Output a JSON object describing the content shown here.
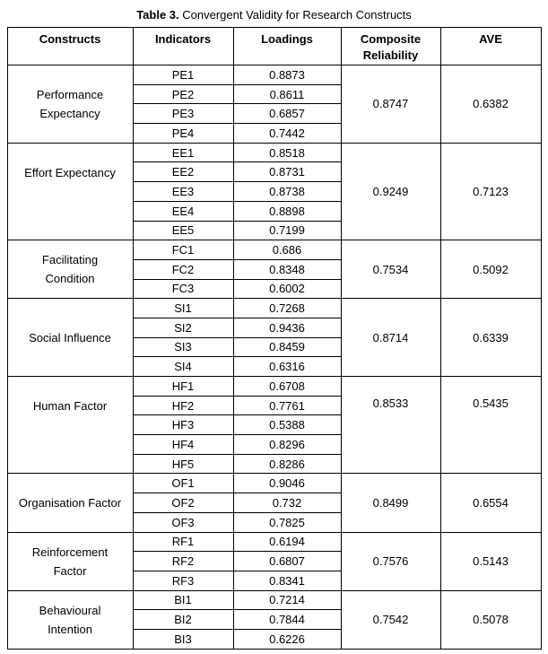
{
  "title": {
    "prefix": "Table 3.",
    "text": " Convergent Validity for Research Constructs"
  },
  "table": {
    "headers": [
      "Constructs",
      "Indicators",
      "Loadings",
      "Composite Reliability",
      "AVE"
    ],
    "groups": [
      {
        "construct": "Performance Expectancy",
        "construct_lines": [
          "Performance",
          "Expectancy"
        ],
        "composite_reliability": "0.8747",
        "ave": "0.6382",
        "indicators": [
          {
            "indicator": "PE1",
            "loading": "0.8873"
          },
          {
            "indicator": "PE2",
            "loading": "0.8611"
          },
          {
            "indicator": "PE3",
            "loading": "0.6857"
          },
          {
            "indicator": "PE4",
            "loading": "0.7442"
          }
        ]
      },
      {
        "construct": "Effort Expectancy",
        "construct_lines": [
          "Effort Expectancy"
        ],
        "composite_reliability": "0.9249",
        "ave": "0.7123",
        "indicators": [
          {
            "indicator": "EE1",
            "loading": "0.8518"
          },
          {
            "indicator": "EE2",
            "loading": "0.8731"
          },
          {
            "indicator": "EE3",
            "loading": "0.8738"
          },
          {
            "indicator": "EE4",
            "loading": "0.8898"
          },
          {
            "indicator": "EE5",
            "loading": "0.7199"
          }
        ]
      },
      {
        "construct": "Facilitating Condition",
        "construct_lines": [
          "Facilitating",
          "Condition"
        ],
        "composite_reliability": "0.7534",
        "ave": "0.5092",
        "indicators": [
          {
            "indicator": "FC1",
            "loading": "0.686"
          },
          {
            "indicator": "FC2",
            "loading": "0.8348"
          },
          {
            "indicator": "FC3",
            "loading": "0.6002"
          }
        ]
      },
      {
        "construct": "Social Influence",
        "construct_lines": [
          "Social Influence"
        ],
        "composite_reliability": "0.8714",
        "ave": "0.6339",
        "indicators": [
          {
            "indicator": "SI1",
            "loading": "0.7268"
          },
          {
            "indicator": "SI2",
            "loading": "0.9436"
          },
          {
            "indicator": "SI3",
            "loading": "0.8459"
          },
          {
            "indicator": "SI4",
            "loading": "0.6316"
          }
        ]
      },
      {
        "construct": "Human Factor",
        "construct_lines": [
          "Human Factor"
        ],
        "composite_reliability": "0.8533",
        "ave": "0.5435",
        "indicators": [
          {
            "indicator": "HF1",
            "loading": "0.6708"
          },
          {
            "indicator": "HF2",
            "loading": "0.7761"
          },
          {
            "indicator": "HF3",
            "loading": "0.5388"
          },
          {
            "indicator": "HF4",
            "loading": "0.8296"
          },
          {
            "indicator": "HF5",
            "loading": "0.8286"
          }
        ]
      },
      {
        "construct": "Organisation Factor",
        "construct_lines": [
          "Organisation Factor"
        ],
        "composite_reliability": "0.8499",
        "ave": "0.6554",
        "indicators": [
          {
            "indicator": "OF1",
            "loading": "0.9046"
          },
          {
            "indicator": "OF2",
            "loading": "0.732"
          },
          {
            "indicator": "OF3",
            "loading": "0.7825"
          }
        ]
      },
      {
        "construct": "Reinforcement Factor",
        "construct_lines": [
          "Reinforcement",
          "Factor"
        ],
        "composite_reliability": "0.7576",
        "ave": "0.5143",
        "indicators": [
          {
            "indicator": "RF1",
            "loading": "0.6194"
          },
          {
            "indicator": "RF2",
            "loading": "0.6807"
          },
          {
            "indicator": "RF3",
            "loading": "0.8341"
          }
        ]
      },
      {
        "construct": "Behavioural Intention",
        "construct_lines": [
          "Behavioural",
          "Intention"
        ],
        "composite_reliability": "0.7542",
        "ave": "0.5078",
        "indicators": [
          {
            "indicator": "BI1",
            "loading": "0.7214"
          },
          {
            "indicator": "BI2",
            "loading": "0.7844"
          },
          {
            "indicator": "BI3",
            "loading": "0.6226"
          }
        ]
      }
    ]
  },
  "colors": {
    "border": "#000000",
    "text": "#000000",
    "background": "#ffffff"
  }
}
